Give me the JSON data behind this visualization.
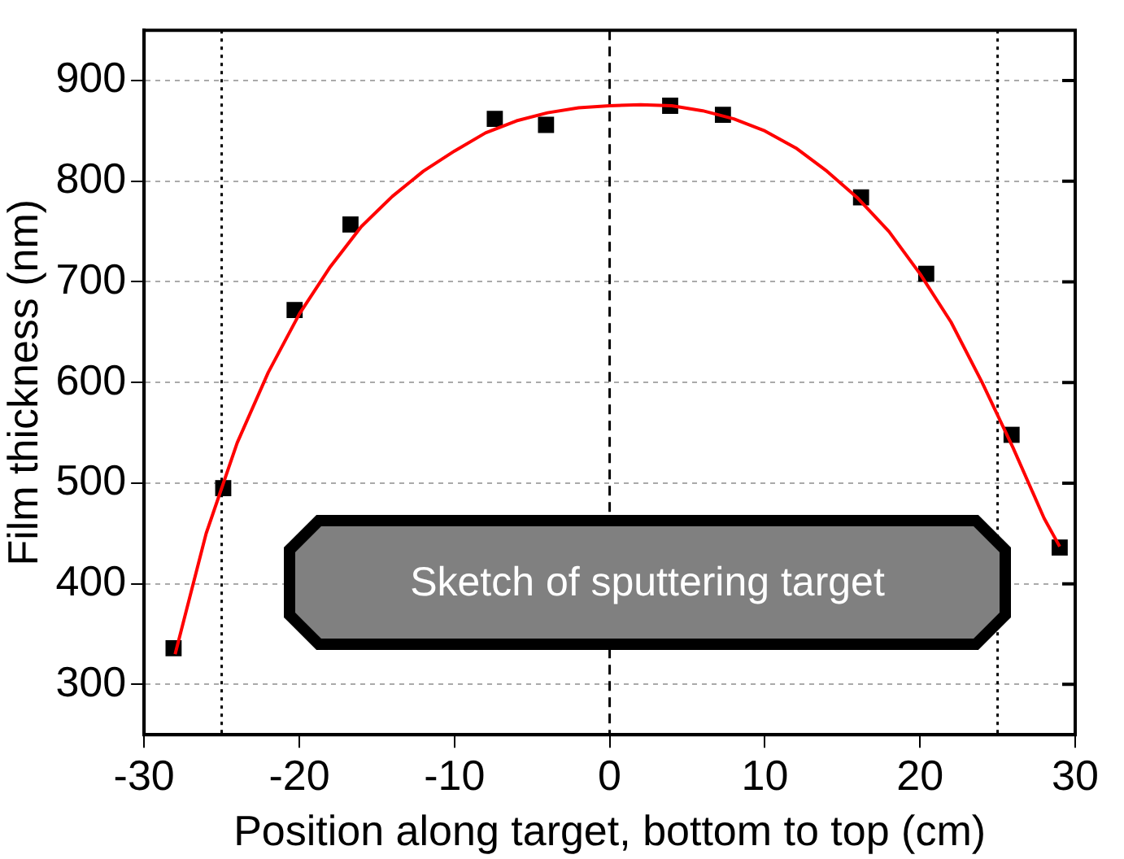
{
  "chart_data": {
    "type": "scatter",
    "xlabel": "Position along target, bottom to top (cm)",
    "ylabel": "Film thickness (nm)",
    "xlim": [
      -30,
      30
    ],
    "xticks": [
      -30,
      -20,
      -10,
      0,
      10,
      20,
      30
    ],
    "ylim": [
      250,
      950
    ],
    "yticks": [
      300,
      400,
      500,
      600,
      700,
      800,
      900
    ],
    "grid": "y",
    "marker": "square",
    "series": [
      {
        "color": "#000000",
        "x": [
          -28.1,
          -24.9,
          -20.3,
          -16.7,
          -7.4,
          -4.1,
          3.9,
          7.3,
          16.2,
          20.4,
          25.9,
          29.0
        ],
        "values": [
          336,
          495,
          672,
          757,
          862,
          856,
          875,
          866,
          784,
          708,
          548,
          436
        ]
      },
      {
        "type": "line",
        "color": "#ff0000",
        "marker": "none",
        "x": [
          -28,
          -26,
          -24,
          -22,
          -20,
          -18,
          -16,
          -14,
          -12,
          -10,
          -8,
          -6,
          -4,
          -2,
          0,
          2,
          4,
          6,
          8,
          10,
          12,
          14,
          16,
          18,
          20,
          22,
          24,
          26,
          28,
          29
        ],
        "values": [
          330,
          450,
          540,
          610,
          668,
          715,
          755,
          785,
          810,
          830,
          848,
          860,
          868,
          873,
          875,
          876,
          875,
          870,
          862,
          850,
          833,
          810,
          783,
          750,
          708,
          660,
          600,
          535,
          465,
          437
        ]
      }
    ],
    "ref_lines": [
      {
        "axis": "x",
        "value": -25,
        "line_style": "dotted",
        "color": "#000000"
      },
      {
        "axis": "x",
        "value": 0,
        "line_style": "dashed",
        "color": "#000000"
      },
      {
        "axis": "x",
        "value": 25,
        "line_style": "dotted",
        "color": "#000000"
      }
    ],
    "annotations": [
      "Sketch of sputtering target"
    ]
  }
}
